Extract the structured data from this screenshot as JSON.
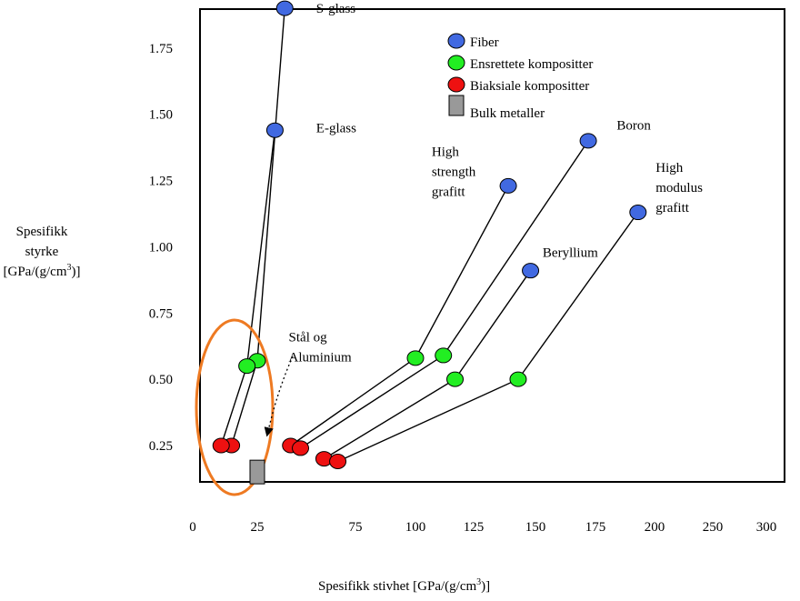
{
  "chart_data": {
    "type": "scatter",
    "title": "",
    "ylabel": {
      "line1": "Spesifikk",
      "line2": "styrke",
      "prefix": "[GPa/(g/cm",
      "exp": "3",
      "suffix": ")]"
    },
    "xlabel": {
      "prefix": "Spesifikk stivhet [GPa/(g/cm",
      "exp": "3",
      "suffix": ")]"
    },
    "xlim": [
      0,
      300
    ],
    "ylim": [
      0,
      2.0
    ],
    "xticks": [
      "0",
      "25",
      "75",
      "100",
      "125",
      "150",
      "175",
      "200",
      "250",
      "300"
    ],
    "yticks": [
      "2.00",
      "1.75",
      "1.50",
      "1.25",
      "1.00",
      "0.75",
      "0.50",
      "0.25"
    ],
    "grid": false,
    "legend_position": "top-right",
    "legend": [
      {
        "label": "Fiber",
        "color": "#4169e1",
        "shape": "circle"
      },
      {
        "label": "Ensrettete kompositter",
        "color": "#22ee22",
        "shape": "circle"
      },
      {
        "label": "Biaksiale kompositter",
        "color": "#ee1111",
        "shape": "circle"
      },
      {
        "label": "Bulk metaller",
        "color": "#999999",
        "shape": "square"
      }
    ],
    "lines": [
      {
        "material": "S-glass",
        "points": [
          [
            39,
            1.9
          ],
          [
            25,
            0.57
          ],
          [
            15,
            0.25
          ]
        ]
      },
      {
        "material": "E-glass",
        "points": [
          [
            34,
            1.44
          ],
          [
            21,
            0.55
          ],
          [
            11,
            0.25
          ]
        ]
      },
      {
        "material": "High strength grafitt",
        "points": [
          [
            139,
            1.23
          ],
          [
            100,
            0.58
          ],
          [
            42,
            0.25
          ]
        ]
      },
      {
        "material": "Boron",
        "points": [
          [
            172,
            1.4
          ],
          [
            112,
            0.59
          ],
          [
            47,
            0.24
          ]
        ]
      },
      {
        "material": "Beryllium",
        "points": [
          [
            148,
            0.91
          ],
          [
            117,
            0.5
          ],
          [
            59,
            0.2
          ]
        ]
      },
      {
        "material": "High modulus grafitt",
        "points": [
          [
            193,
            1.13
          ],
          [
            143,
            0.5
          ],
          [
            66,
            0.19
          ]
        ]
      }
    ],
    "bulk_metals": {
      "x": 25,
      "y": 0.15
    },
    "labels": [
      {
        "text": [
          "S-glass"
        ],
        "x": 55,
        "y": 1.9
      },
      {
        "text": [
          "E-glass"
        ],
        "x": 55,
        "y": 1.45
      },
      {
        "text": [
          "High",
          "strength",
          "grafitt"
        ],
        "x": 107,
        "y": 1.36
      },
      {
        "text": [
          "Boron"
        ],
        "x": 184,
        "y": 1.46
      },
      {
        "text": [
          "High",
          "modulus",
          "grafitt"
        ],
        "x": 201,
        "y": 1.3
      },
      {
        "text": [
          "Beryllium"
        ],
        "x": 153,
        "y": 0.98
      },
      {
        "text": [
          "Stål og",
          "Aluminium"
        ],
        "x": 41,
        "y": 0.66
      }
    ],
    "annotation_highlight": {
      "color": "#ee7a22",
      "shape": "ellipse"
    }
  }
}
